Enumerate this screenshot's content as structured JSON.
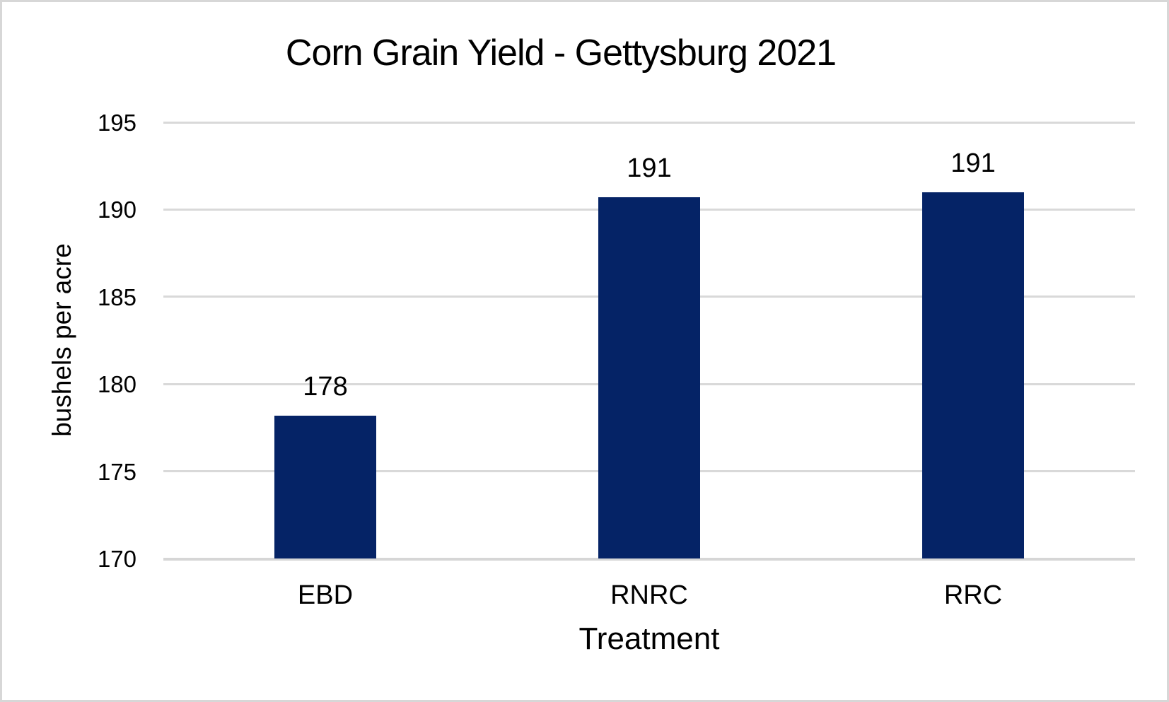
{
  "chart_data": {
    "type": "bar",
    "title": "Corn Grain Yield - Gettysburg 2021",
    "categories": [
      "EBD",
      "RNRC",
      "RRC"
    ],
    "values": [
      178,
      191,
      191
    ],
    "values_precise": [
      178.2,
      190.7,
      191.0
    ],
    "data_labels": [
      "178",
      "191",
      "191"
    ],
    "xlabel": "Treatment",
    "ylabel": "bushels per acre",
    "ylim": [
      170,
      195
    ],
    "ytick_step": 5,
    "yticks": [
      "170",
      "175",
      "180",
      "185",
      "190",
      "195"
    ],
    "grid": true,
    "legend_position": "none",
    "bar_color": "#052366",
    "gridline_color": "#d9d9d9",
    "axis_line_color": "#d6d6d6",
    "text_color": "#000000",
    "background_color": "#ffffff"
  }
}
